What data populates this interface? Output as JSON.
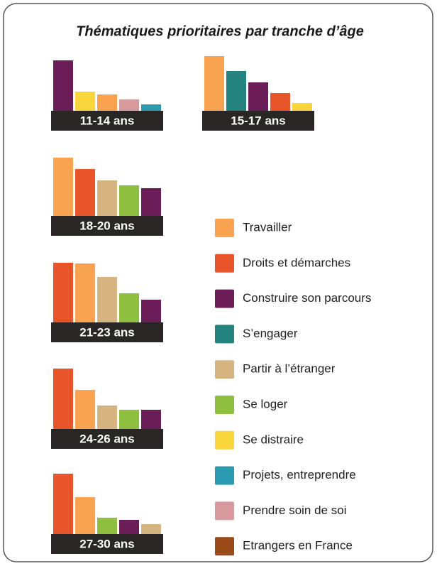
{
  "title": "Thématiques prioritaires par tranche d’âge",
  "legend": [
    {
      "name": "Travailler",
      "color": "#f9a350"
    },
    {
      "name": "Droits et démarches",
      "color": "#e8552b"
    },
    {
      "name": "Construire son parcours",
      "color": "#6b1d57"
    },
    {
      "name": "S’engager",
      "color": "#25837f"
    },
    {
      "name": "Partir à l’étranger",
      "color": "#d6b482"
    },
    {
      "name": "Se loger",
      "color": "#8fbf3f"
    },
    {
      "name": "Se distraire",
      "color": "#f8d53a"
    },
    {
      "name": "Projets, entreprendre",
      "color": "#2a9bb0"
    },
    {
      "name": "Prendre soin de soi",
      "color": "#d99a9f"
    },
    {
      "name": "Etrangers en France",
      "color": "#9b4a1a"
    }
  ],
  "chart_data": [
    {
      "type": "bar",
      "title": "11-14 ans",
      "categories": [
        "Construire son parcours",
        "Se distraire",
        "Travailler",
        "Prendre soin de soi",
        "Projets, entreprendre"
      ],
      "values": [
        72,
        28,
        24,
        17,
        10
      ],
      "ylim": [
        0,
        100
      ]
    },
    {
      "type": "bar",
      "title": "15-17 ans",
      "categories": [
        "Travailler",
        "S’engager",
        "Construire son parcours",
        "Droits et démarches",
        "Se distraire"
      ],
      "values": [
        78,
        57,
        41,
        26,
        12
      ],
      "ylim": [
        0,
        100
      ]
    },
    {
      "type": "bar",
      "title": "18-20 ans",
      "categories": [
        "Travailler",
        "Droits et démarches",
        "Partir à l’étranger",
        "Se loger",
        "Construire son parcours"
      ],
      "values": [
        83,
        67,
        51,
        44,
        40
      ],
      "ylim": [
        0,
        100
      ]
    },
    {
      "type": "bar",
      "title": "21-23 ans",
      "categories": [
        "Droits et démarches",
        "Travailler",
        "Partir à l’étranger",
        "Se loger",
        "Construire son parcours"
      ],
      "values": [
        85,
        84,
        65,
        42,
        33
      ],
      "ylim": [
        0,
        100
      ]
    },
    {
      "type": "bar",
      "title": "24-26 ans",
      "categories": [
        "Droits et démarches",
        "Travailler",
        "Partir à l’étranger",
        "Se loger",
        "Construire son parcours"
      ],
      "values": [
        86,
        56,
        34,
        28,
        28
      ],
      "ylim": [
        0,
        100
      ]
    },
    {
      "type": "bar",
      "title": "27-30 ans",
      "categories": [
        "Droits et démarches",
        "Travailler",
        "Se loger",
        "Construire son parcours",
        "Partir à l’étranger"
      ],
      "values": [
        86,
        53,
        24,
        21,
        15
      ],
      "ylim": [
        0,
        100
      ]
    }
  ]
}
